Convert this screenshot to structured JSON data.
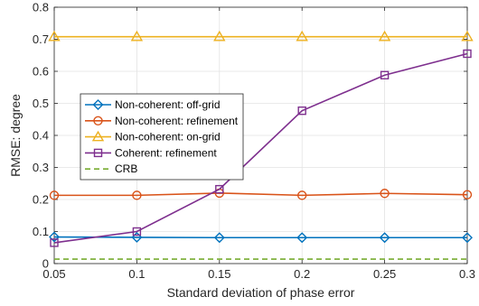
{
  "chart_data": {
    "type": "line",
    "xlabel": "Standard deviation of phase error",
    "ylabel": "RMSE: degree",
    "xlim": [
      0.05,
      0.3
    ],
    "ylim": [
      0,
      0.8
    ],
    "x_ticks": [
      "0.05",
      "0.1",
      "0.15",
      "0.2",
      "0.25",
      "0.3"
    ],
    "y_ticks": [
      "0",
      "0.1",
      "0.2",
      "0.3",
      "0.4",
      "0.5",
      "0.6",
      "0.7",
      "0.8"
    ],
    "grid": true,
    "legend_position": "middle-left",
    "x": [
      0.05,
      0.1,
      0.15,
      0.2,
      0.25,
      0.3
    ],
    "series": [
      {
        "name": "Non-coherent: off-grid",
        "values": [
          0.083,
          0.082,
          0.081,
          0.081,
          0.081,
          0.081
        ],
        "color": "#0072BD",
        "marker": "diamond",
        "style": "solid"
      },
      {
        "name": "Non-coherent: refinement",
        "values": [
          0.213,
          0.213,
          0.22,
          0.213,
          0.219,
          0.215
        ],
        "color": "#D95319",
        "marker": "circle",
        "style": "solid"
      },
      {
        "name": "Non-coherent: on-grid",
        "values": [
          0.708,
          0.708,
          0.708,
          0.708,
          0.708,
          0.708
        ],
        "color": "#EDB120",
        "marker": "triangle",
        "style": "solid"
      },
      {
        "name": "Coherent: refinement",
        "values": [
          0.065,
          0.1,
          0.232,
          0.477,
          0.588,
          0.655
        ],
        "color": "#7E2F8E",
        "marker": "square",
        "style": "solid"
      },
      {
        "name": "CRB",
        "values": [
          0.014,
          0.014,
          0.014,
          0.014,
          0.014,
          0.014
        ],
        "color": "#77AC30",
        "marker": "none",
        "style": "dashed"
      }
    ]
  }
}
